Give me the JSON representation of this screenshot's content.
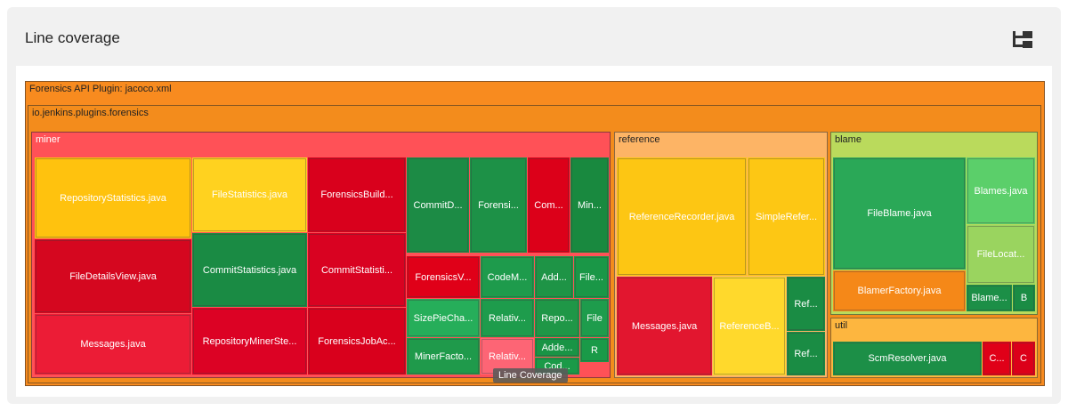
{
  "header": {
    "title": "Line coverage",
    "toggle_icon": "tree-view-icon"
  },
  "tooltip": "Line Coverage",
  "chart_data": {
    "type": "treemap",
    "metric": "Line Coverage",
    "root": {
      "name": "Forensics API Plugin: jacoco.xml",
      "color": "#f88b1f",
      "children": [
        {
          "name": "io.jenkins.plugins.forensics",
          "color": "#f38c1c",
          "children": [
            {
              "name": "miner",
              "color": "#ff5157",
              "leaves": [
                {
                  "label": "RepositoryStatistics.java",
                  "color": "#ffc20e"
                },
                {
                  "label": "FileStatistics.java",
                  "color": "#ffd21f"
                },
                {
                  "label": "ForensicsBuild...",
                  "color": "#d9001c"
                },
                {
                  "label": "CommitD...",
                  "color": "#1c8b45"
                },
                {
                  "label": "Forensi...",
                  "color": "#1d9147"
                },
                {
                  "label": "Com...",
                  "color": "#dc0019"
                },
                {
                  "label": "Min...",
                  "color": "#19893f"
                },
                {
                  "label": "FileDetailsView.java",
                  "color": "#d5071f"
                },
                {
                  "label": "CommitStatistics.java",
                  "color": "#1a8b44"
                },
                {
                  "label": "CommitStatisti...",
                  "color": "#d90221"
                },
                {
                  "label": "ForensicsV...",
                  "color": "#e00018"
                },
                {
                  "label": "CodeM...",
                  "color": "#1e9b4c"
                },
                {
                  "label": "Add...",
                  "color": "#1e9446"
                },
                {
                  "label": "File...",
                  "color": "#1a9747"
                },
                {
                  "label": "Messages.java",
                  "color": "#ec1c36"
                },
                {
                  "label": "RepositoryMinerSte...",
                  "color": "#dc0224"
                },
                {
                  "label": "ForensicsJobAc...",
                  "color": "#d9001c"
                },
                {
                  "label": "SizePieCha...",
                  "color": "#26ae5a"
                },
                {
                  "label": "Relativ...",
                  "color": "#1e9c4c"
                },
                {
                  "label": "Repo...",
                  "color": "#1f9747"
                },
                {
                  "label": "File",
                  "color": "#1e9c4c"
                },
                {
                  "label": "MinerFacto...",
                  "color": "#1f9a4b"
                },
                {
                  "label": "Relativ...",
                  "color": "#fd6575"
                },
                {
                  "label": "Adde...",
                  "color": "#199445"
                },
                {
                  "label": "R",
                  "color": "#1a9a48"
                },
                {
                  "label": "Cod...",
                  "color": "#1a9a48"
                }
              ]
            },
            {
              "name": "reference",
              "color": "#fdb465",
              "leaves": [
                {
                  "label": "ReferenceRecorder.java",
                  "color": "#fdc613"
                },
                {
                  "label": "SimpleRefer...",
                  "color": "#fdc714"
                },
                {
                  "label": "Messages.java",
                  "color": "#e2162f"
                },
                {
                  "label": "ReferenceB...",
                  "color": "#ffd92c"
                },
                {
                  "label": "Ref...",
                  "color": "#1a8c44"
                },
                {
                  "label": "Ref...",
                  "color": "#1a8c44"
                }
              ]
            },
            {
              "name": "blame",
              "color": "#bada5c",
              "leaves": [
                {
                  "label": "FileBlame.java",
                  "color": "#2aa857"
                },
                {
                  "label": "Blames.java",
                  "color": "#5bcf6a"
                },
                {
                  "label": "FileLocat...",
                  "color": "#9ad45f"
                },
                {
                  "label": "BlamerFactory.java",
                  "color": "#f58818"
                },
                {
                  "label": "Blame...",
                  "color": "#1c8f47"
                },
                {
                  "label": "B",
                  "color": "#1a8c44"
                }
              ]
            },
            {
              "name": "util",
              "color": "#fdb63f",
              "leaves": [
                {
                  "label": "ScmResolver.java",
                  "color": "#1c8f47"
                },
                {
                  "label": "C...",
                  "color": "#e00018"
                },
                {
                  "label": "C",
                  "color": "#dc0019"
                }
              ]
            }
          ]
        }
      ]
    }
  }
}
